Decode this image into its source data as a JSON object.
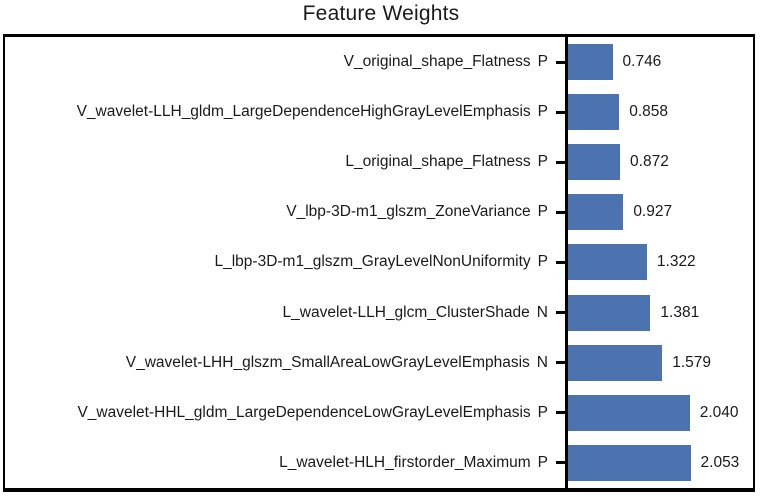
{
  "title": "Feature Weights",
  "chart_data": {
    "type": "bar",
    "orientation": "horizontal",
    "title": "Feature Weights",
    "categories": [
      "V_original_shape_Flatness P",
      "V_wavelet-LLH_gldm_LargeDependenceHighGrayLevelEmphasis P",
      "L_original_shape_Flatness P",
      "V_lbp-3D-m1_glszm_ZoneVariance P",
      "L_lbp-3D-m1_glszm_GrayLevelNonUniformity P",
      "L_wavelet-LLH_glcm_ClusterShade N",
      "V_wavelet-LHH_glszm_SmallAreaLowGrayLevelEmphasis N",
      "V_wavelet-HHL_gldm_LargeDependenceLowGrayLevelEmphasis P",
      "L_wavelet-HLH_firstorder_Maximum P"
    ],
    "features": [
      "V_original_shape_Flatness",
      "V_wavelet-LLH_gldm_LargeDependenceHighGrayLevelEmphasis",
      "L_original_shape_Flatness",
      "V_lbp-3D-m1_glszm_ZoneVariance",
      "L_lbp-3D-m1_glszm_GrayLevelNonUniformity",
      "L_wavelet-LLH_glcm_ClusterShade",
      "V_wavelet-LHH_glszm_SmallAreaLowGrayLevelEmphasis",
      "V_wavelet-HHL_gldm_LargeDependenceLowGrayLevelEmphasis",
      "L_wavelet-HLH_firstorder_Maximum"
    ],
    "signs": [
      "P",
      "P",
      "P",
      "P",
      "P",
      "N",
      "N",
      "P",
      "P"
    ],
    "values": [
      0.746,
      0.858,
      0.872,
      0.927,
      1.322,
      1.381,
      1.579,
      2.04,
      2.053
    ],
    "value_labels": [
      "0.746",
      "0.858",
      "0.872",
      "0.927",
      "1.322",
      "1.381",
      "1.579",
      "2.040",
      "2.053"
    ],
    "xlabel": "",
    "ylabel": "",
    "xlim": [
      0,
      3.1
    ],
    "grid": false,
    "legend": "none",
    "value_label_position": "outside-right",
    "bar_color": "#4C72B0",
    "axis_color": "#000000",
    "text_color": "#1a1a1a",
    "background_color": "#ffffff"
  }
}
